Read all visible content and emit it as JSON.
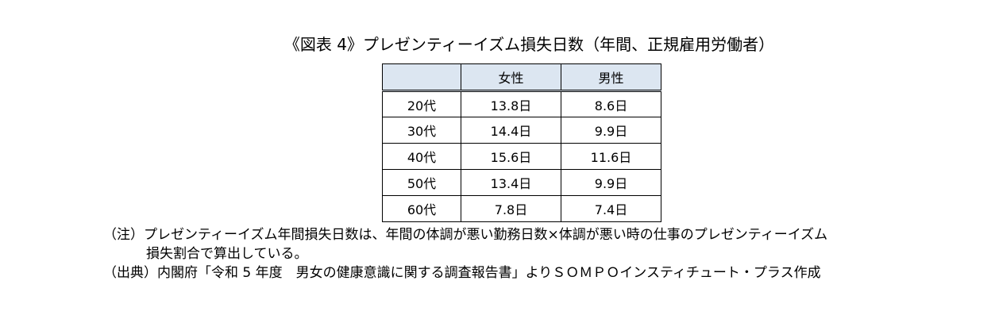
{
  "title": "《図表 4》プレゼンティーイズム損失日数（年間、正規雇用労働者）",
  "table": {
    "headers": [
      "",
      "女性",
      "男性"
    ],
    "rows": [
      {
        "age": "20代",
        "female": "13.8日",
        "male": "8.6日"
      },
      {
        "age": "30代",
        "female": "14.4日",
        "male": "9.9日"
      },
      {
        "age": "40代",
        "female": "15.6日",
        "male": "11.6日"
      },
      {
        "age": "50代",
        "female": "13.4日",
        "male": "9.9日"
      },
      {
        "age": "60代",
        "female": "7.8日",
        "male": "7.4日"
      }
    ]
  },
  "notes": {
    "note_line1": "（注）プレゼンティーイズム年間損失日数は、年間の体調が悪い勤務日数×体調が悪い時の仕事のプレゼンティーイズム",
    "note_line2": "損失割合で算出している。",
    "source": "（出典）内閣府「令和 5 年度　男女の健康意識に関する調査報告書」よりＳＯＭＰＯインスティチュート・プラス作成"
  }
}
